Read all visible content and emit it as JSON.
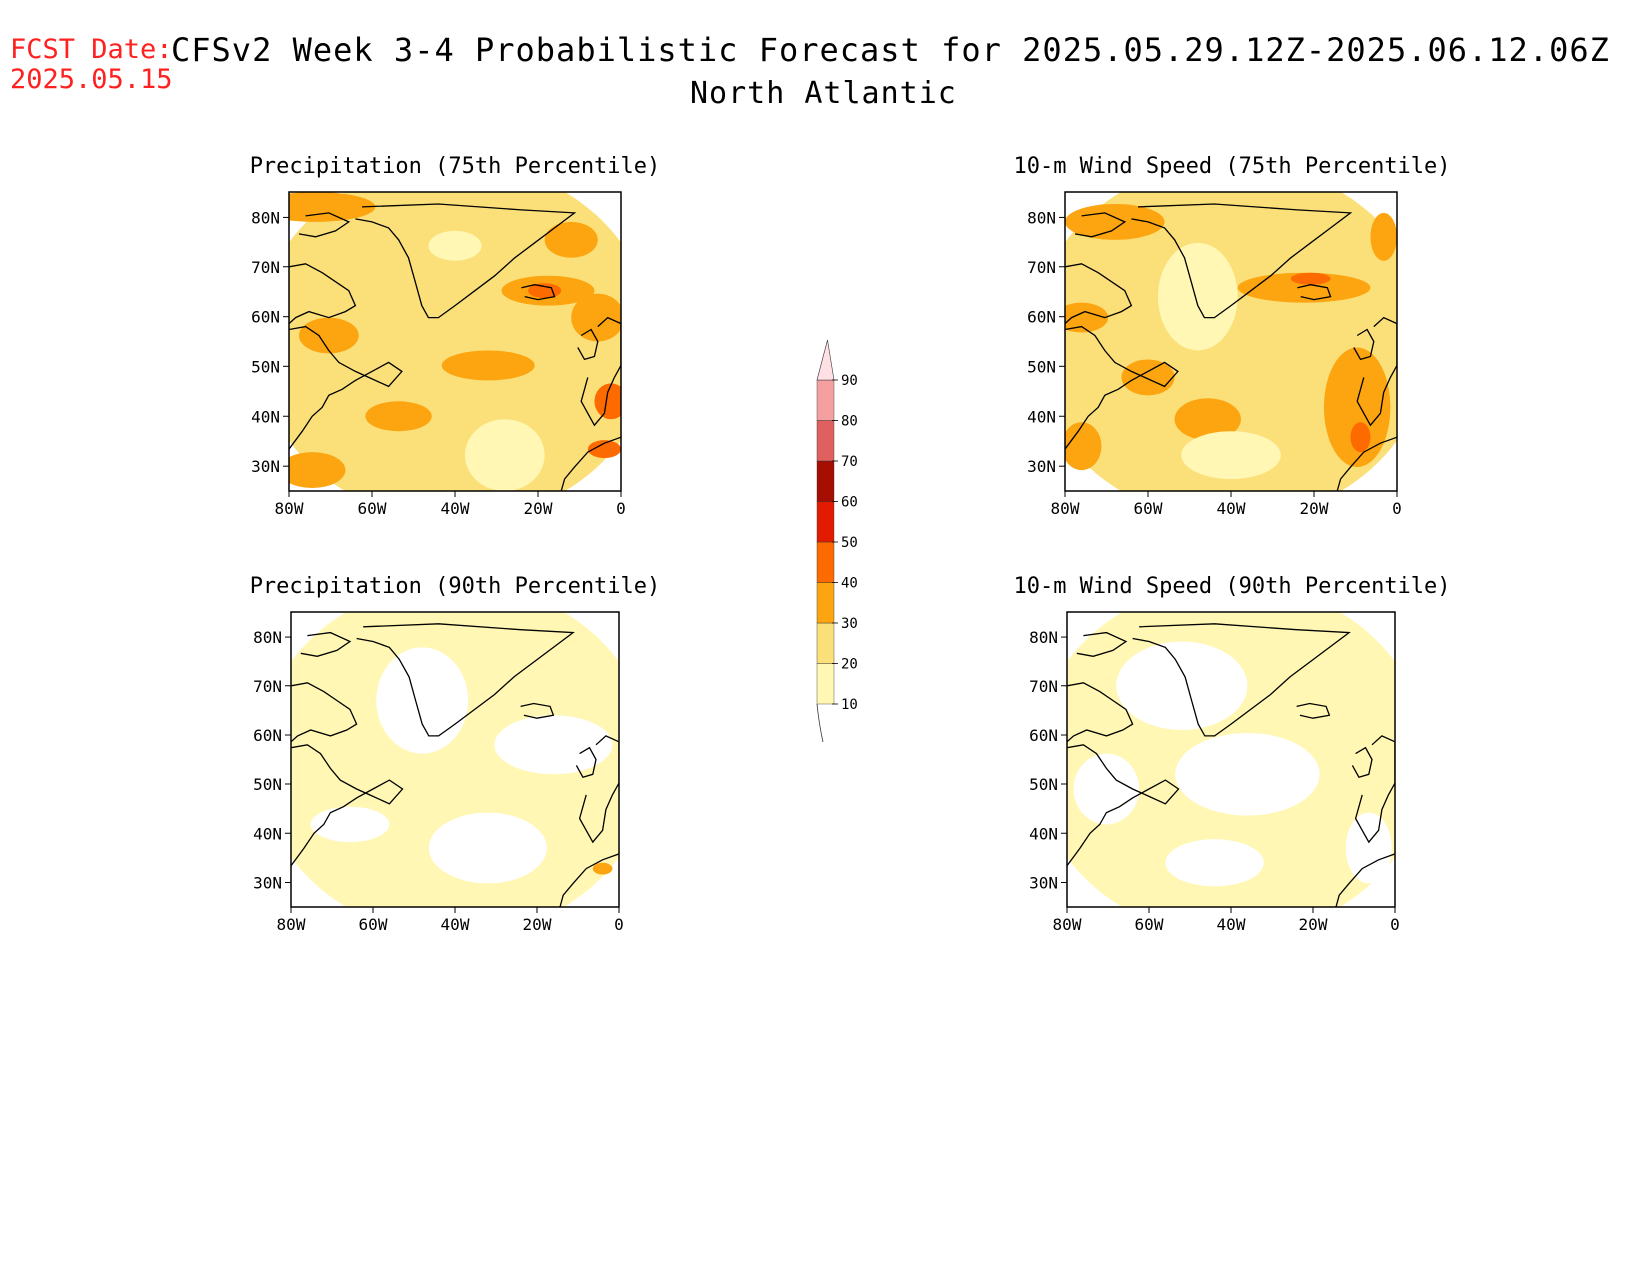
{
  "header": {
    "fcst_label": "FCST Date:",
    "fcst_date": "2025.05.15",
    "title": "CFSv2 Week 3-4 Probabilistic Forecast for 2025.05.29.12Z-2025.06.12.06Z",
    "region": "North Atlantic"
  },
  "panels": [
    {
      "title": "Precipitation (75th Percentile)",
      "variable": "precipitation",
      "percentile": "75th"
    },
    {
      "title": "10-m Wind Speed (75th Percentile)",
      "variable": "wind",
      "percentile": "75th"
    },
    {
      "title": "Precipitation (90th Percentile)",
      "variable": "precipitation",
      "percentile": "90th"
    },
    {
      "title": "10-m Wind Speed (90th Percentile)",
      "variable": "wind",
      "percentile": "90th"
    }
  ],
  "axes": {
    "lat_ticks": [
      "80N",
      "70N",
      "60N",
      "50N",
      "40N",
      "30N"
    ],
    "lon_ticks": [
      "80W",
      "60W",
      "40W",
      "20W",
      "0"
    ]
  },
  "colorbar": {
    "levels": [
      "10",
      "20",
      "30",
      "40",
      "50",
      "60",
      "70",
      "80",
      "90"
    ],
    "colors": [
      "#fff7b3",
      "#fbe07a",
      "#fca510",
      "#fd6a00",
      "#e21b00",
      "#a50e00",
      "#e06060",
      "#f5a0a0",
      "#ffe0e4"
    ]
  },
  "map_colors": {
    "c10": "#fff7b3",
    "c20": "#fbe07a",
    "c30": "#fca510",
    "c40": "#fd6a00",
    "land_edge": "#000000"
  }
}
